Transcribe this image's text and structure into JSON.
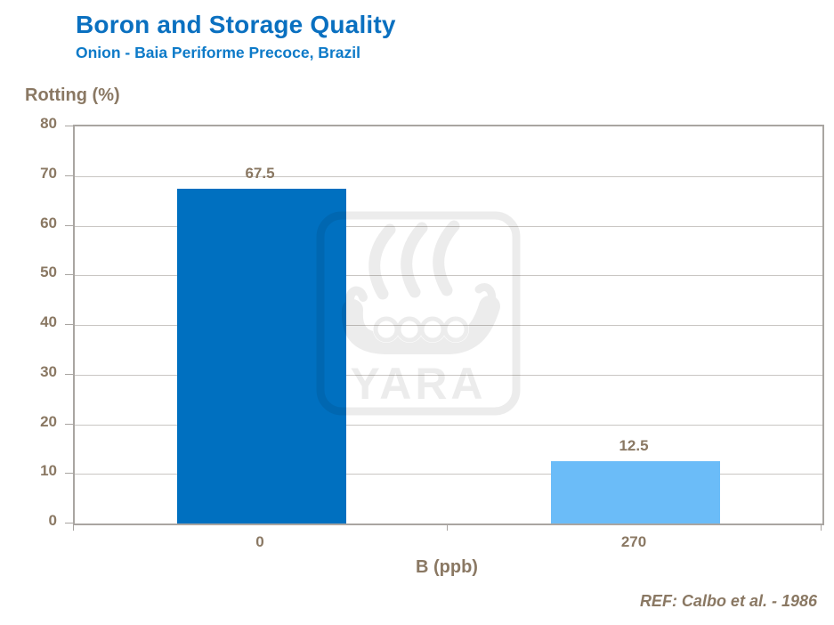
{
  "header": {
    "title": "Boron and Storage Quality",
    "subtitle": "Onion - Baia Periforme Precoce, Brazil"
  },
  "chart_data": {
    "type": "bar",
    "title": "Boron and Storage Quality",
    "subtitle": "Onion - Baia Periforme Precoce, Brazil",
    "categories": [
      "0",
      "270"
    ],
    "values": [
      67.5,
      12.5
    ],
    "value_labels": [
      "67.5",
      "12.5"
    ],
    "bar_colors": [
      "#0070c0",
      "#6bbcf8"
    ],
    "xlabel": "B (ppb)",
    "ylabel": "Rotting (%)",
    "ylim": [
      0,
      80
    ],
    "yticks": [
      0,
      10,
      20,
      30,
      40,
      50,
      60,
      70,
      80
    ],
    "grid": true,
    "legend_position": "none"
  },
  "footer": {
    "reference": "REF: Calbo et al. - 1986"
  },
  "watermark": {
    "name": "yara-logo",
    "text": "YARA"
  },
  "colors": {
    "title_blue": "#0a70c0",
    "subtitle_blue": "#0d7ac8",
    "label_brown": "#8a7863",
    "gridline": "#c9c6c3",
    "plot_border": "#a9a5a1",
    "bar_dark": "#0070c0",
    "bar_light": "#6bbcf8",
    "background": "#ffffff"
  }
}
